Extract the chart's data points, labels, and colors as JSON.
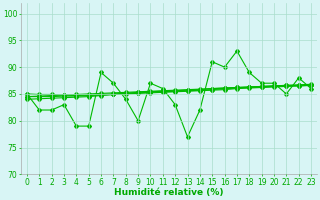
{
  "x": [
    0,
    1,
    2,
    3,
    4,
    5,
    6,
    7,
    8,
    9,
    10,
    11,
    12,
    13,
    14,
    15,
    16,
    17,
    18,
    19,
    20,
    21,
    22,
    23
  ],
  "series_jagged": [
    85,
    82,
    82,
    83,
    79,
    79,
    89,
    87,
    84,
    80,
    87,
    86,
    83,
    77,
    82,
    91,
    90,
    93,
    89,
    87,
    87,
    85,
    88,
    86
  ],
  "series_trend1": [
    84.5,
    84.6,
    84.7,
    84.8,
    84.9,
    85.0,
    85.1,
    85.2,
    85.3,
    85.4,
    85.5,
    85.6,
    85.7,
    85.8,
    85.9,
    86.0,
    86.1,
    86.2,
    86.3,
    86.4,
    86.5,
    86.6,
    86.7,
    86.8
  ],
  "series_trend2": [
    84.0,
    84.1,
    84.2,
    84.3,
    84.4,
    84.5,
    84.7,
    84.9,
    85.1,
    85.3,
    85.4,
    85.5,
    85.6,
    85.7,
    85.8,
    86.0,
    86.1,
    86.2,
    86.3,
    86.4,
    86.5,
    86.6,
    86.6,
    86.7
  ],
  "series_trend3": [
    84.5,
    84.5,
    84.5,
    84.6,
    84.6,
    84.7,
    84.8,
    84.9,
    85.0,
    85.1,
    85.2,
    85.3,
    85.4,
    85.5,
    85.6,
    85.7,
    85.8,
    86.0,
    86.1,
    86.2,
    86.3,
    86.4,
    86.5,
    86.6
  ],
  "series_trend4": [
    85.0,
    84.9,
    84.9,
    84.8,
    84.7,
    84.8,
    84.9,
    85.0,
    85.1,
    85.2,
    85.3,
    85.4,
    85.5,
    85.6,
    85.7,
    85.8,
    86.0,
    86.1,
    86.2,
    86.3,
    86.4,
    86.5,
    86.5,
    86.6
  ],
  "line_color": "#00bb00",
  "marker": "D",
  "markersize": 2.0,
  "linewidth": 0.8,
  "xlabel": "Humidité relative (%)",
  "ylim": [
    70,
    102
  ],
  "xlim": [
    -0.5,
    23.5
  ],
  "yticks": [
    70,
    75,
    80,
    85,
    90,
    95,
    100
  ],
  "xticks": [
    0,
    1,
    2,
    3,
    4,
    5,
    6,
    7,
    8,
    9,
    10,
    11,
    12,
    13,
    14,
    15,
    16,
    17,
    18,
    19,
    20,
    21,
    22,
    23
  ],
  "bg_color": "#d8f5f5",
  "grid_color": "#aaddcc",
  "tick_color": "#00aa00",
  "xlabel_color": "#00aa00",
  "xlabel_fontsize": 6.5,
  "tick_fontsize": 5.5
}
